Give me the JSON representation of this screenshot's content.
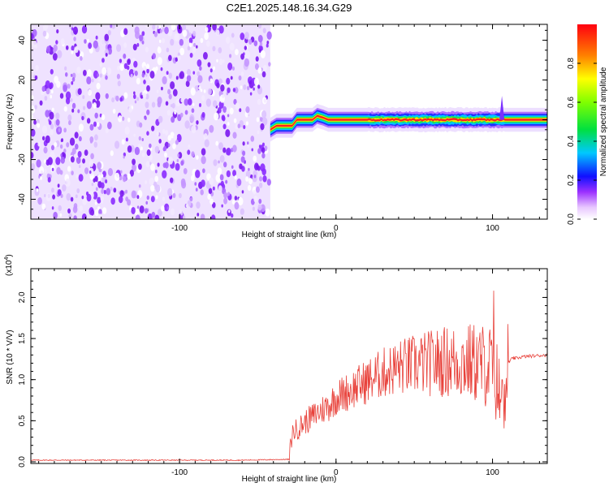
{
  "title": "C2E1.2025.148.16.34.G29",
  "chart_data": [
    {
      "type": "heatmap",
      "xlabel": "Height of straight line (km)",
      "ylabel": "Frequency (Hz)",
      "xlim": [
        -195,
        135
      ],
      "ylim": [
        -50,
        48
      ],
      "xticks": [
        -100,
        0,
        100
      ],
      "yticks": [
        -40,
        -20,
        0,
        20,
        40
      ],
      "noise_region": {
        "x_range": [
          -195,
          -42
        ],
        "y_range": [
          -50,
          48
        ]
      },
      "ridge": {
        "x_range": [
          -42,
          135
        ],
        "centerline": [
          [
            -42,
            -5
          ],
          [
            -38,
            -3
          ],
          [
            -33,
            -3
          ],
          [
            -28,
            -3
          ],
          [
            -25,
            0
          ],
          [
            -20,
            0
          ],
          [
            -15,
            0
          ],
          [
            -12,
            2
          ],
          [
            -8,
            1
          ],
          [
            -5,
            0
          ],
          [
            0,
            0
          ],
          [
            5,
            0
          ],
          [
            10,
            0
          ],
          [
            20,
            0
          ],
          [
            30,
            0
          ],
          [
            40,
            0
          ],
          [
            50,
            0
          ],
          [
            60,
            0
          ],
          [
            70,
            0
          ],
          [
            80,
            0
          ],
          [
            90,
            0
          ],
          [
            100,
            0
          ],
          [
            105,
            0
          ],
          [
            110,
            0
          ],
          [
            135,
            0
          ]
        ]
      },
      "colorbar": {
        "label": "Normalized spectral amplitude",
        "range": [
          0,
          1
        ],
        "ticks": [
          "0.0",
          "0.2",
          "0.4",
          "0.6",
          "0.8"
        ]
      }
    },
    {
      "type": "line",
      "xlabel": "Height of straight line (km)",
      "ylabel": "SNR (10 * V/V)",
      "y_multiplier": "(x10",
      "y_multiplier_exp": "4",
      "xlim": [
        -195,
        135
      ],
      "ylim": [
        -0.02,
        2.35
      ],
      "xticks": [
        -100,
        0,
        100
      ],
      "yticks": [
        "0.0",
        "0.5",
        "1.0",
        "1.5",
        "2.0"
      ],
      "color": "#e8413a",
      "series": [
        {
          "points": [
            [
              -195,
              0.02
            ],
            [
              -150,
              0.02
            ],
            [
              -100,
              0.02
            ],
            [
              -60,
              0.02
            ],
            [
              -30,
              0.03
            ],
            [
              -28,
              0.35
            ],
            [
              -25,
              0.4
            ],
            [
              -20,
              0.48
            ],
            [
              -15,
              0.55
            ],
            [
              -10,
              0.62
            ],
            [
              -5,
              0.68
            ],
            [
              0,
              0.78
            ],
            [
              10,
              0.88
            ],
            [
              20,
              0.98
            ],
            [
              30,
              1.08
            ],
            [
              40,
              1.15
            ],
            [
              50,
              1.18
            ],
            [
              60,
              1.2
            ],
            [
              70,
              1.22
            ],
            [
              80,
              1.22
            ],
            [
              90,
              1.2
            ],
            [
              100,
              1.15
            ],
            [
              105,
              0.8
            ],
            [
              108,
              1.0
            ],
            [
              110,
              1.2
            ],
            [
              112,
              1.25
            ],
            [
              120,
              1.28
            ],
            [
              135,
              1.3
            ]
          ]
        }
      ]
    }
  ]
}
